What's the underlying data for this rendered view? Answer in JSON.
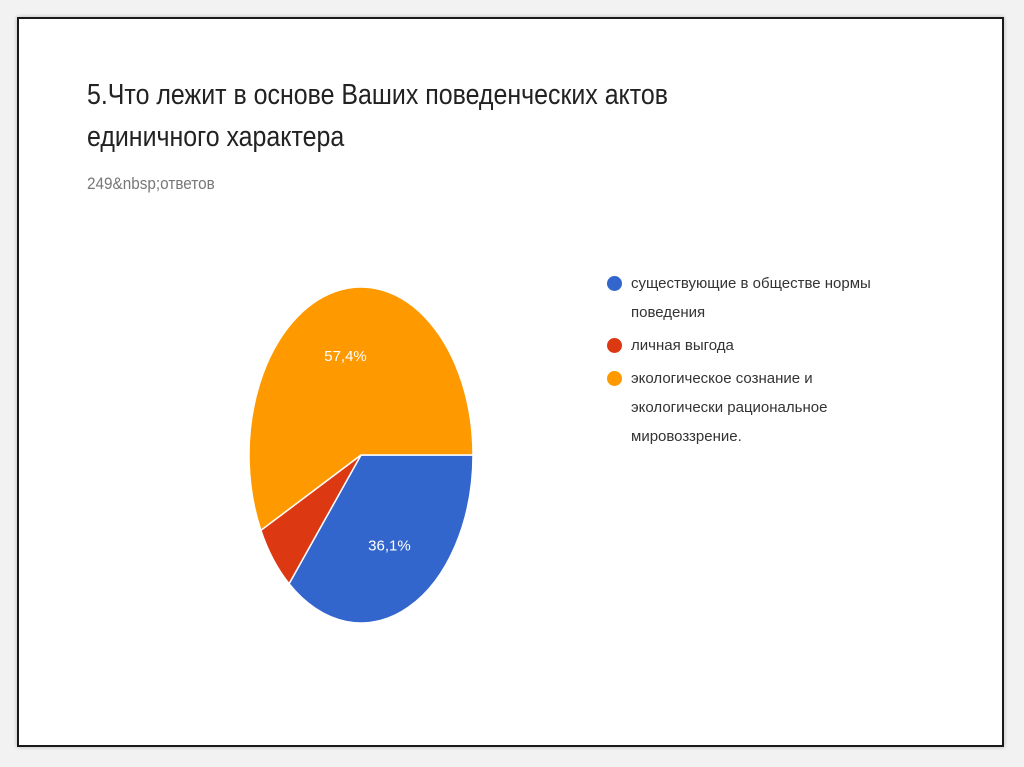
{
  "chart_data": {
    "type": "pie",
    "title": "5.Что лежит в основе Ваших поведенческих актов единичного характера",
    "subtitle": "249&nbsp;ответов",
    "labels": [
      "существующие в обществе нормы поведения",
      "личная выгода",
      "экологическое сознание и экологически рациональное мировоззрение."
    ],
    "values": [
      36.1,
      6.5,
      57.4
    ],
    "data_labels": [
      "36,1%",
      "",
      "57,4%"
    ],
    "colors": [
      "#3366cc",
      "#dc3912",
      "#ff9900"
    ],
    "legend_position": "right"
  }
}
